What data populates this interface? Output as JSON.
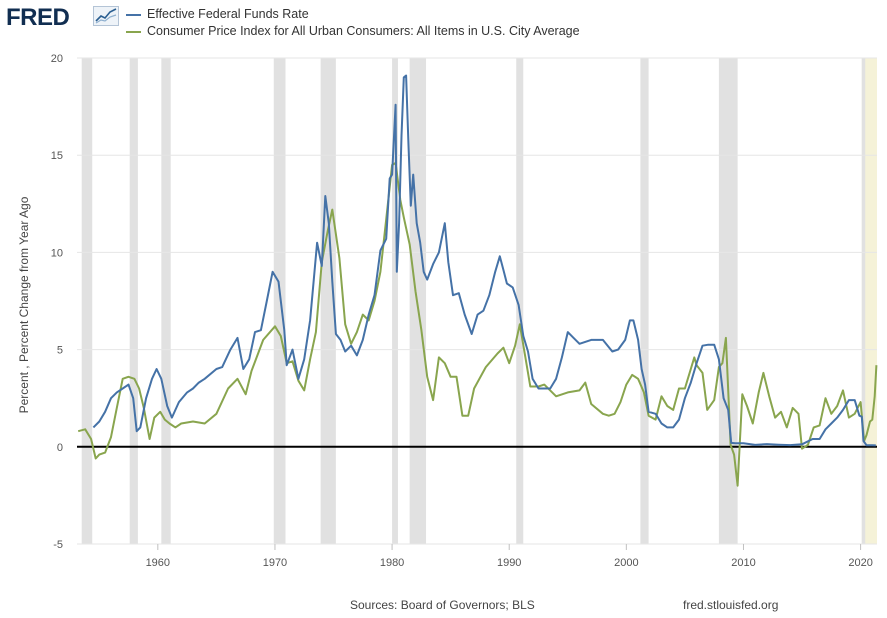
{
  "header": {
    "logo_text": "FRED",
    "logo_icon": "chart-line-icon"
  },
  "footer": {
    "sources": "Sources: Board of Governors; BLS",
    "url": "fred.stlouisfed.org"
  },
  "colors": {
    "fedfunds": "#4572a7",
    "cpi": "#89a54e",
    "recession": "#e1e1e1",
    "current": "#f5f2d8",
    "zero_line": "#000000",
    "grid": "#e6e6e6"
  },
  "chart_data": {
    "type": "line",
    "title": "",
    "xlabel": "",
    "ylabel": "Percent , Percent Change from Year Ago",
    "xlim": [
      1953.1,
      2021.4
    ],
    "ylim": [
      -5,
      20
    ],
    "yticks": [
      "-5",
      "0",
      "5",
      "10",
      "15",
      "20"
    ],
    "xticks": [
      "1960",
      "1970",
      "1980",
      "1990",
      "2000",
      "2010",
      "2020"
    ],
    "recessions": [
      [
        1953.5,
        1954.4
      ],
      [
        1957.6,
        1958.3
      ],
      [
        1960.3,
        1961.1
      ],
      [
        1969.9,
        1970.9
      ],
      [
        1973.9,
        1975.2
      ],
      [
        1980.0,
        1980.5
      ],
      [
        1981.5,
        1982.9
      ],
      [
        1990.6,
        1991.2
      ],
      [
        2001.2,
        2001.9
      ],
      [
        2007.9,
        2009.5
      ],
      [
        2020.1,
        2020.4
      ]
    ],
    "shaded_current": [
      2020.1,
      2021.4
    ],
    "series": [
      {
        "name": "Effective Federal Funds Rate",
        "x": [
          1954.5,
          1955.0,
          1955.5,
          1956.0,
          1956.5,
          1957.0,
          1957.5,
          1957.9,
          1958.2,
          1958.5,
          1959.0,
          1959.5,
          1959.9,
          1960.3,
          1960.8,
          1961.2,
          1961.8,
          1962.5,
          1963.0,
          1963.5,
          1964.0,
          1965.0,
          1965.5,
          1966.2,
          1966.8,
          1967.3,
          1967.8,
          1968.3,
          1968.8,
          1969.3,
          1969.8,
          1970.3,
          1970.8,
          1971.0,
          1971.5,
          1972.0,
          1972.5,
          1973.0,
          1973.3,
          1973.6,
          1974.0,
          1974.3,
          1974.6,
          1974.9,
          1975.2,
          1975.6,
          1976.0,
          1976.5,
          1977.0,
          1977.5,
          1978.0,
          1978.5,
          1979.0,
          1979.5,
          1979.8,
          1980.0,
          1980.3,
          1980.4,
          1980.6,
          1980.8,
          1981.0,
          1981.2,
          1981.4,
          1981.6,
          1981.8,
          1982.1,
          1982.4,
          1982.7,
          1983.0,
          1983.5,
          1984.0,
          1984.5,
          1984.8,
          1985.2,
          1985.7,
          1986.2,
          1986.8,
          1987.3,
          1987.8,
          1988.3,
          1988.8,
          1989.2,
          1989.5,
          1989.8,
          1990.3,
          1990.8,
          1991.2,
          1991.6,
          1992.0,
          1992.5,
          1993.0,
          1993.5,
          1994.0,
          1994.5,
          1995.0,
          1995.5,
          1996.0,
          1997.0,
          1998.0,
          1998.8,
          1999.3,
          1999.9,
          2000.3,
          2000.6,
          2001.0,
          2001.3,
          2001.6,
          2001.9,
          2002.5,
          2003.0,
          2003.5,
          2004.0,
          2004.5,
          2005.0,
          2005.5,
          2006.0,
          2006.5,
          2007.0,
          2007.5,
          2007.9,
          2008.3,
          2008.7,
          2008.95,
          2009.3,
          2010.0,
          2011.0,
          2012.0,
          2013.0,
          2014.0,
          2015.0,
          2015.9,
          2016.5,
          2017.0,
          2017.5,
          2018.0,
          2018.5,
          2019.0,
          2019.5,
          2019.9,
          2020.1,
          2020.25,
          2020.5,
          2021.0,
          2021.3
        ],
        "values": [
          1.0,
          1.3,
          1.8,
          2.5,
          2.8,
          3.0,
          3.2,
          2.5,
          0.8,
          1.0,
          2.5,
          3.5,
          4.0,
          3.5,
          2.1,
          1.5,
          2.3,
          2.8,
          3.0,
          3.3,
          3.5,
          4.0,
          4.1,
          5.0,
          5.6,
          4.0,
          4.5,
          5.9,
          6.0,
          7.5,
          9.0,
          8.5,
          6.0,
          4.2,
          5.0,
          3.5,
          4.5,
          6.5,
          8.5,
          10.5,
          9.3,
          12.9,
          11.5,
          8.5,
          5.8,
          5.5,
          4.9,
          5.2,
          4.7,
          5.5,
          6.8,
          7.8,
          10.1,
          10.7,
          13.8,
          14.0,
          17.6,
          9.0,
          11.5,
          16.0,
          19.0,
          19.1,
          15.5,
          12.4,
          14.0,
          11.5,
          10.5,
          9.0,
          8.6,
          9.4,
          10.0,
          11.5,
          9.5,
          7.8,
          7.9,
          6.8,
          5.8,
          6.8,
          7.0,
          7.8,
          9.0,
          9.8,
          9.1,
          8.4,
          8.2,
          7.3,
          5.7,
          4.9,
          3.5,
          3.0,
          3.0,
          3.0,
          3.5,
          4.6,
          5.9,
          5.6,
          5.3,
          5.5,
          5.5,
          4.9,
          5.0,
          5.5,
          6.5,
          6.5,
          5.5,
          4.0,
          3.2,
          1.8,
          1.7,
          1.2,
          1.0,
          1.0,
          1.4,
          2.5,
          3.3,
          4.3,
          5.2,
          5.25,
          5.25,
          4.5,
          2.5,
          1.9,
          0.2,
          0.18,
          0.18,
          0.1,
          0.14,
          0.11,
          0.09,
          0.13,
          0.4,
          0.4,
          0.9,
          1.2,
          1.5,
          1.9,
          2.4,
          2.4,
          1.6,
          1.55,
          0.3,
          0.08,
          0.08,
          0.07
        ]
      },
      {
        "name": "Consumer Price Index for All Urban Consumers: All Items in U.S. City Average",
        "x": [
          1953.2,
          1953.8,
          1954.3,
          1954.7,
          1955.0,
          1955.5,
          1956.0,
          1956.5,
          1957.0,
          1957.5,
          1958.0,
          1958.4,
          1958.8,
          1959.3,
          1959.7,
          1960.2,
          1960.6,
          1961.0,
          1961.5,
          1962.0,
          1963.0,
          1964.0,
          1965.0,
          1966.0,
          1966.8,
          1967.5,
          1968.0,
          1969.0,
          1970.0,
          1970.5,
          1971.0,
          1971.5,
          1972.0,
          1972.5,
          1973.0,
          1973.5,
          1974.0,
          1974.5,
          1974.9,
          1975.5,
          1976.0,
          1976.5,
          1977.0,
          1977.5,
          1978.0,
          1978.5,
          1979.0,
          1979.5,
          1980.0,
          1980.3,
          1980.7,
          1981.0,
          1981.5,
          1982.0,
          1982.5,
          1983.0,
          1983.5,
          1984.0,
          1984.5,
          1985.0,
          1985.5,
          1986.0,
          1986.5,
          1987.0,
          1988.0,
          1989.0,
          1989.5,
          1990.0,
          1990.5,
          1990.9,
          1991.3,
          1991.8,
          1992.5,
          1993.0,
          1994.0,
          1995.0,
          1996.0,
          1996.5,
          1997.0,
          1998.0,
          1998.5,
          1999.0,
          1999.5,
          2000.0,
          2000.5,
          2001.0,
          2001.5,
          2001.9,
          2002.5,
          2003.0,
          2003.5,
          2004.0,
          2004.5,
          2005.0,
          2005.8,
          2006.0,
          2006.5,
          2006.9,
          2007.5,
          2007.9,
          2008.2,
          2008.5,
          2008.9,
          2009.2,
          2009.5,
          2009.9,
          2010.3,
          2010.8,
          2011.3,
          2011.7,
          2012.2,
          2012.7,
          2013.2,
          2013.7,
          2014.2,
          2014.7,
          2015.0,
          2015.5,
          2016.0,
          2016.5,
          2017.0,
          2017.5,
          2018.0,
          2018.5,
          2019.0,
          2019.5,
          2020.0,
          2020.3,
          2020.5,
          2020.8,
          2021.0,
          2021.2,
          2021.35
        ],
        "values": [
          0.8,
          0.9,
          0.4,
          -0.6,
          -0.4,
          -0.3,
          0.5,
          2.0,
          3.5,
          3.6,
          3.5,
          3.0,
          2.0,
          0.4,
          1.5,
          1.8,
          1.4,
          1.2,
          1.0,
          1.2,
          1.3,
          1.2,
          1.7,
          3.0,
          3.5,
          2.7,
          3.9,
          5.5,
          6.2,
          5.7,
          4.3,
          4.4,
          3.4,
          2.9,
          4.5,
          5.9,
          9.5,
          11.1,
          12.2,
          9.7,
          6.3,
          5.3,
          5.9,
          6.8,
          6.5,
          7.5,
          9.0,
          11.7,
          14.5,
          14.6,
          12.7,
          11.8,
          10.4,
          8.0,
          6.0,
          3.6,
          2.4,
          4.6,
          4.3,
          3.6,
          3.6,
          1.6,
          1.6,
          3.0,
          4.1,
          4.8,
          5.1,
          4.3,
          5.2,
          6.3,
          4.9,
          3.1,
          3.1,
          3.2,
          2.6,
          2.8,
          2.9,
          3.3,
          2.2,
          1.7,
          1.6,
          1.7,
          2.3,
          3.2,
          3.7,
          3.5,
          2.8,
          1.6,
          1.4,
          2.6,
          2.1,
          1.9,
          3.0,
          3.0,
          4.6,
          4.2,
          3.8,
          1.9,
          2.4,
          4.1,
          4.3,
          5.6,
          0.1,
          -0.4,
          -2.0,
          2.7,
          2.1,
          1.2,
          2.8,
          3.8,
          2.6,
          1.5,
          1.8,
          1.0,
          2.0,
          1.7,
          -0.1,
          0.1,
          1.0,
          1.1,
          2.5,
          1.7,
          2.1,
          2.9,
          1.5,
          1.7,
          2.3,
          0.3,
          0.6,
          1.3,
          1.4,
          2.6,
          4.2
        ]
      }
    ]
  }
}
